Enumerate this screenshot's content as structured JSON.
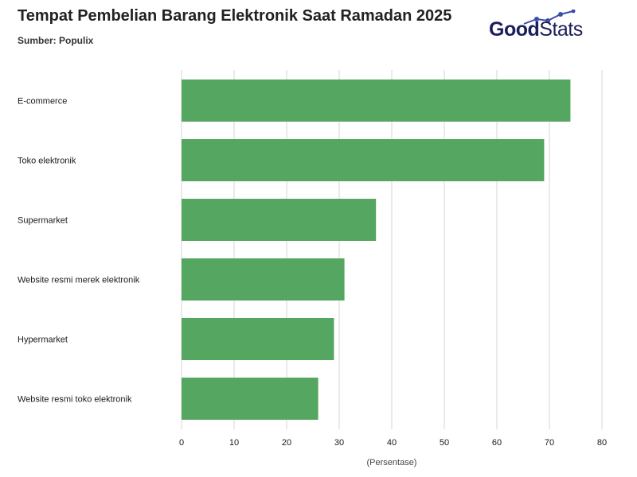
{
  "header": {
    "title": "Tempat Pembelian Barang Elektronik Saat Ramadan 2025",
    "source": "Sumber: Populix"
  },
  "logo": {
    "part1": "Good",
    "part2": "Stats",
    "icon": "trend-line-icon",
    "color": "#1c1e59",
    "accent": "#3b4ea8"
  },
  "chart_data": {
    "type": "bar",
    "orientation": "horizontal",
    "categories": [
      "E-commerce",
      "Toko elektronik",
      "Supermarket",
      "Website resmi merek elektronik",
      "Hypermarket",
      "Website resmi toko elektronik"
    ],
    "values": [
      74,
      69,
      37,
      31,
      29,
      26
    ],
    "title": "Tempat Pembelian Barang Elektronik Saat Ramadan 2025",
    "subtitle": "Sumber: Populix",
    "xlabel": "(Persentase)",
    "ylabel": "",
    "xlim": [
      0,
      80
    ],
    "xticks": [
      0,
      10,
      20,
      30,
      40,
      50,
      60,
      70,
      80
    ],
    "grid": true,
    "legend": "none",
    "bar_color": "#55a660",
    "grid_color": "#d6d6d6"
  }
}
